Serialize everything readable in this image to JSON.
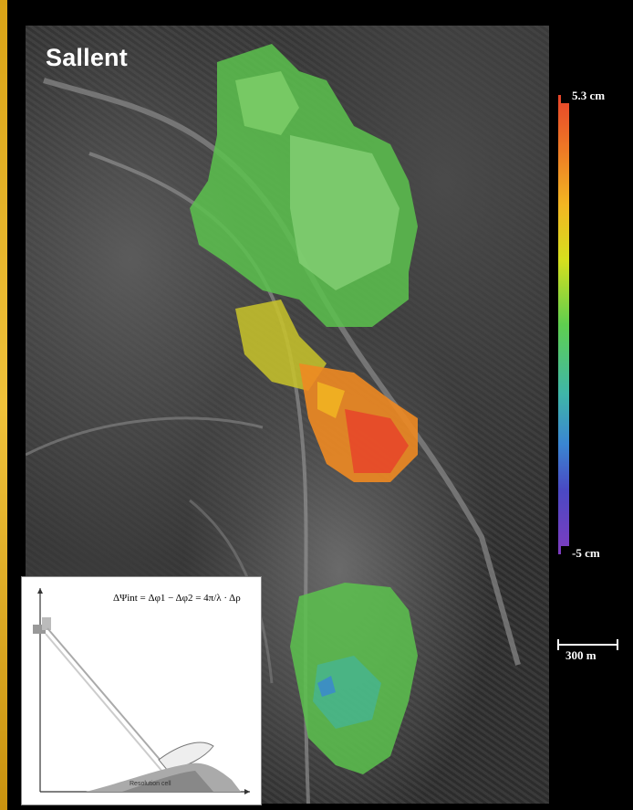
{
  "title": "Sallent",
  "colorbar": {
    "max_label": "5.3 cm",
    "min_label": "-5 cm",
    "colors": [
      "#e8442a",
      "#f2b622",
      "#5fcf4f",
      "#3a86d2",
      "#7e3cc0"
    ]
  },
  "scalebar": {
    "label": "300 m"
  },
  "inset": {
    "formula": "ΔΨint = Δφ1 − Δφ2 = 4π/λ · Δρ",
    "caption": "Resolution cell"
  },
  "icons": [
    "geometry-diagram-icon"
  ]
}
